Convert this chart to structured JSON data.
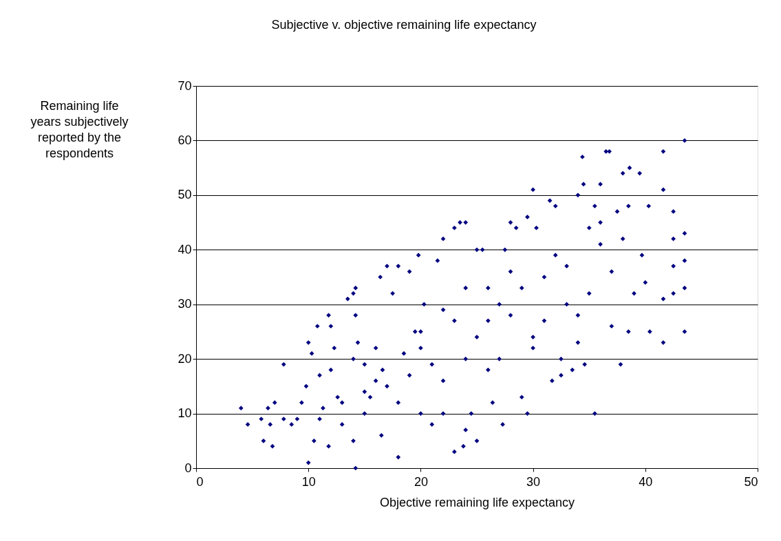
{
  "chart_data": {
    "type": "scatter",
    "title": "Subjective v. objective remaining life expectancy",
    "xlabel": "Objective remaining life expectancy",
    "ylabel": "Remaining life years subjectively reported by the respondents",
    "x": [
      4.0,
      4.6,
      5.8,
      6.0,
      6.4,
      6.6,
      6.8,
      7.0,
      7.8,
      7.8,
      8.5,
      9.0,
      9.4,
      9.8,
      10.0,
      10.0,
      10.3,
      10.5,
      10.8,
      11.0,
      11.3,
      11.8,
      11.8,
      12.0,
      12.3,
      12.6,
      13.0,
      13.5,
      14.0,
      14.2,
      14.2,
      14.2,
      14.4,
      14.0,
      15.0,
      15.0,
      15.5,
      16.0,
      16.4,
      16.5,
      16.6,
      17.0,
      17.5,
      18.0,
      18.0,
      18.5,
      19.0,
      19.5,
      19.8,
      20.0,
      20.3,
      21.0,
      21.5,
      22.0,
      22.0,
      23.0,
      23.5,
      24.0,
      23.0,
      23.8,
      24.0,
      24.5,
      25.0,
      25.0,
      25.5,
      26.0,
      26.4,
      27.0,
      27.5,
      27.3,
      28.0,
      28.5,
      29.0,
      29.5,
      29.5,
      30.0,
      30.3,
      31.0,
      31.5,
      31.7,
      32.0,
      32.5,
      32.5,
      33.0,
      33.5,
      34.0,
      34.4,
      34.5,
      34.6,
      35.0,
      35.5,
      35.5,
      36.0,
      36.0,
      36.5,
      36.8,
      37.0,
      37.5,
      37.8,
      38.0,
      38.5,
      38.6,
      38.5,
      39.5,
      39.7,
      40.3,
      40.4,
      41.6,
      41.6,
      41.6,
      41.6,
      42.5,
      42.5,
      42.5,
      42.5,
      43.5,
      43.5,
      43.5,
      43.5,
      43.5,
      40.0,
      39.0,
      37.0,
      35.0,
      33.0,
      31.0,
      29.0,
      27.0,
      25.0,
      23.0,
      21.0,
      19.0,
      17.0,
      15.0,
      13.0,
      11.0,
      20.0,
      22.0,
      24.0,
      26.0,
      28.0,
      30.0,
      32.0,
      34.0,
      36.0,
      38.0,
      18.0,
      16.0,
      14.0,
      12.0,
      22.0,
      26.0,
      30.0,
      34.0,
      20.0,
      24.0,
      28.0
    ],
    "values": [
      11,
      8,
      9,
      5,
      11,
      8,
      4,
      12,
      19,
      9,
      8,
      9,
      12,
      15,
      23,
      1,
      21,
      5,
      26,
      17,
      11,
      28,
      4,
      26,
      22,
      13,
      8,
      31,
      32,
      33,
      0,
      28,
      23,
      5,
      10,
      19,
      13,
      22,
      35,
      6,
      18,
      37,
      32,
      37,
      2,
      21,
      36,
      25,
      39,
      10,
      30,
      8,
      38,
      42,
      10,
      44,
      45,
      45,
      3,
      4,
      7,
      10,
      5,
      40,
      40,
      33,
      12,
      20,
      40,
      8,
      45,
      44,
      13,
      10,
      46,
      51,
      44,
      35,
      49,
      16,
      48,
      20,
      17,
      30,
      18,
      50,
      57,
      52,
      19,
      44,
      10,
      48,
      52,
      45,
      58,
      58,
      26,
      47,
      19,
      54,
      48,
      55,
      25,
      54,
      39,
      48,
      25,
      58,
      51,
      31,
      23,
      47,
      42,
      37,
      32,
      60,
      43,
      38,
      33,
      25,
      34,
      32,
      36,
      32,
      37,
      27,
      33,
      30,
      24,
      27,
      19,
      17,
      15,
      14,
      12,
      9,
      25,
      29,
      33,
      27,
      36,
      24,
      39,
      28,
      41,
      42,
      12,
      16,
      20,
      18,
      16,
      18,
      22,
      23,
      22,
      20,
      28
    ],
    "color": "#000080",
    "marker": "diamond",
    "xlim": [
      0,
      50
    ],
    "xticks": [
      0,
      10,
      20,
      30,
      40,
      50
    ],
    "ylim": [
      0,
      70
    ],
    "yticks": [
      0,
      10,
      20,
      30,
      40,
      50,
      60,
      70
    ],
    "grid": "y"
  }
}
